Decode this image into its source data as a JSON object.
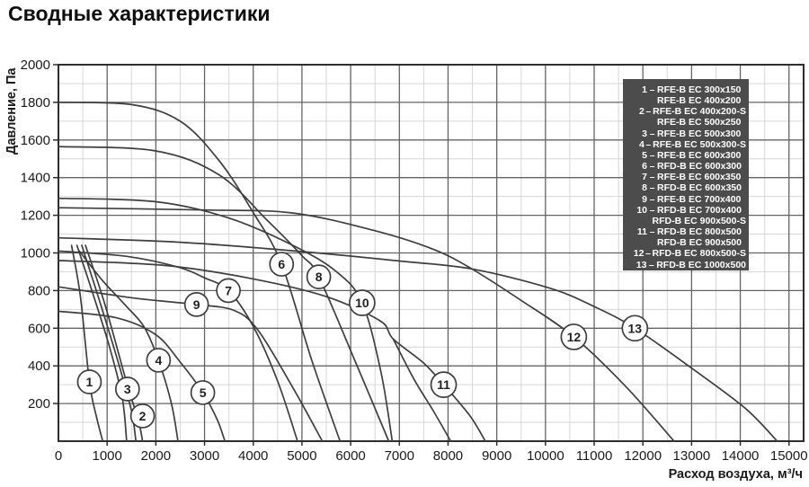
{
  "title": "Сводные характеристики",
  "colors": {
    "curve": "#3e3e3e",
    "grid_major": "#646464",
    "grid_minor": "#d6d6d6",
    "border": "#2d2d2d",
    "legend_bg": "#4c4c4c",
    "legend_text": "#ffffff",
    "text": "#1a1a1a",
    "circle_fill": "#ffffff"
  },
  "chart_data": {
    "type": "line",
    "title": "Сводные характеристики",
    "xlabel": "Расход воздуха, м³/ч",
    "ylabel": "Давление, Па",
    "xlim": [
      0,
      15300
    ],
    "ylim": [
      0,
      2000
    ],
    "x_tick_step": 1000,
    "x_minor_step": 500,
    "y_tick_step": 200,
    "y_minor_step": 100,
    "grid": true,
    "legend_position": "top-right",
    "x_tick_labels": [
      "0",
      "1000",
      "2000",
      "3000",
      "4000",
      "5000",
      "6000",
      "7000",
      "8000",
      "9000",
      "10000",
      "11000",
      "12000",
      "13000",
      "14000",
      "15000"
    ],
    "y_tick_labels": [
      "200",
      "400",
      "600",
      "800",
      "1000",
      "1200",
      "1400",
      "1600",
      "1800",
      "2000"
    ],
    "series": [
      {
        "n": "1",
        "models": [
          "RFE-B EC 300x150",
          "RFE-B EC 400x200"
        ],
        "points": [
          [
            270,
            1040
          ],
          [
            450,
            770
          ],
          [
            636,
            315
          ],
          [
            780,
            130
          ],
          [
            909,
            0
          ]
        ],
        "label_at": [
          636,
          315
        ]
      },
      {
        "n": "2",
        "models": [
          "RFE-B EC 400x200-S",
          "RFE-B EC 500x250"
        ],
        "points": [
          [
            480,
            1040
          ],
          [
            850,
            740
          ],
          [
            1250,
            400
          ],
          [
            1500,
            160
          ],
          [
            1590,
            0
          ]
        ],
        "label_at": [
          1727,
          134
        ]
      },
      {
        "n": "2-pair",
        "aux": true,
        "models": [],
        "points": [
          [
            555,
            1040
          ],
          [
            950,
            730
          ],
          [
            1380,
            330
          ],
          [
            1640,
            110
          ],
          [
            1727,
            0
          ]
        ],
        "label_at": null
      },
      {
        "n": "2-connector",
        "aux": true,
        "models": [],
        "points": [
          [
            1545,
            134
          ],
          [
            1700,
            134
          ]
        ],
        "label_at": null
      },
      {
        "n": "3",
        "models": [
          "RFE-B EC 500x300"
        ],
        "points": [
          [
            380,
            1040
          ],
          [
            700,
            790
          ],
          [
            1050,
            500
          ],
          [
            1310,
            230
          ],
          [
            1400,
            0
          ]
        ],
        "label_at": [
          1418,
          277
        ]
      },
      {
        "n": "4",
        "models": [
          "RFE-B EC 500x300-S"
        ],
        "points": [
          [
            430,
            1010
          ],
          [
            900,
            855
          ],
          [
            1400,
            715
          ],
          [
            1764,
            605
          ],
          [
            2055,
            430
          ],
          [
            2320,
            200
          ],
          [
            2455,
            0
          ]
        ],
        "label_at": [
          2055,
          430
        ]
      },
      {
        "n": "5",
        "models": [
          "RFE-B EC 600x300"
        ],
        "points": [
          [
            0,
            690
          ],
          [
            1200,
            655
          ],
          [
            2000,
            565
          ],
          [
            2500,
            420
          ],
          [
            2964,
            258
          ],
          [
            3260,
            115
          ],
          [
            3418,
            0
          ]
        ],
        "label_at": [
          2964,
          258
        ]
      },
      {
        "n": "6",
        "models": [
          "RFD-B EC 600x300"
        ],
        "points": [
          [
            0,
            1800
          ],
          [
            1500,
            1788
          ],
          [
            2500,
            1700
          ],
          [
            3300,
            1490
          ],
          [
            4000,
            1215
          ],
          [
            4582,
            940
          ],
          [
            5200,
            430
          ],
          [
            5782,
            0
          ]
        ],
        "label_at": [
          4582,
          940
        ]
      },
      {
        "n": "7",
        "models": [
          "RFE-B EC 600x350"
        ],
        "points": [
          [
            0,
            1010
          ],
          [
            1400,
            982
          ],
          [
            2455,
            925
          ],
          [
            3000,
            868
          ],
          [
            3490,
            800
          ],
          [
            4000,
            610
          ],
          [
            4500,
            320
          ],
          [
            4909,
            0
          ]
        ],
        "label_at": [
          3490,
          800
        ]
      },
      {
        "n": "8",
        "models": [
          "RFD-B EC 600x350"
        ],
        "points": [
          [
            0,
            1565
          ],
          [
            2000,
            1542
          ],
          [
            3300,
            1415
          ],
          [
            4300,
            1170
          ],
          [
            5000,
            985
          ],
          [
            5345,
            873
          ],
          [
            6100,
            420
          ],
          [
            6782,
            0
          ]
        ],
        "label_at": [
          5345,
          873
        ]
      },
      {
        "n": "9",
        "models": [
          "RFE-B EC 700x400"
        ],
        "points": [
          [
            0,
            820
          ],
          [
            1400,
            765
          ],
          [
            2090,
            745
          ],
          [
            2836,
            726
          ],
          [
            3600,
            695
          ],
          [
            4091,
            592
          ],
          [
            4800,
            290
          ],
          [
            5418,
            0
          ]
        ],
        "label_at": [
          2836,
          726
        ]
      },
      {
        "n": "10",
        "models": [
          "RFD-B EC 700x400",
          "RFD-B EC 900x500-S"
        ],
        "points": [
          [
            0,
            1290
          ],
          [
            2000,
            1272
          ],
          [
            3500,
            1185
          ],
          [
            4800,
            1042
          ],
          [
            5700,
            902
          ],
          [
            6236,
            735
          ],
          [
            6620,
            370
          ],
          [
            6855,
            0
          ]
        ],
        "label_at": [
          6236,
          735
        ]
      },
      {
        "n": "11",
        "models": [
          "RFD-B EC 800x500",
          "RFD-B EC 900x500"
        ],
        "points": [
          [
            0,
            960
          ],
          [
            2200,
            933
          ],
          [
            4000,
            862
          ],
          [
            5500,
            768
          ],
          [
            6600,
            640
          ],
          [
            6873,
            543
          ],
          [
            7500,
            415
          ],
          [
            7909,
            300
          ],
          [
            8450,
            135
          ],
          [
            8764,
            0
          ]
        ],
        "label_at": [
          7909,
          300
        ]
      },
      {
        "n": "11-branch",
        "aux": true,
        "models": [],
        "points": [
          [
            6873,
            543
          ],
          [
            7300,
            330
          ],
          [
            7700,
            160
          ],
          [
            8055,
            0
          ]
        ],
        "label_at": null
      },
      {
        "n": "12",
        "models": [
          "RFD-B EC 800x500-S"
        ],
        "points": [
          [
            0,
            1240
          ],
          [
            3000,
            1228
          ],
          [
            4818,
            1212
          ],
          [
            6500,
            1118
          ],
          [
            7690,
            1020
          ],
          [
            8490,
            915
          ],
          [
            9500,
            748
          ],
          [
            10582,
            554
          ],
          [
            11650,
            290
          ],
          [
            12640,
            0
          ]
        ],
        "label_at": [
          10582,
          554
        ]
      },
      {
        "n": "13",
        "models": [
          "RFD-B EC 1000x500"
        ],
        "points": [
          [
            0,
            1080
          ],
          [
            2500,
            1057
          ],
          [
            5000,
            1007
          ],
          [
            7000,
            957
          ],
          [
            8490,
            915
          ],
          [
            10090,
            813
          ],
          [
            11000,
            715
          ],
          [
            11836,
            600
          ],
          [
            13000,
            388
          ],
          [
            14100,
            175
          ],
          [
            14760,
            0
          ]
        ],
        "label_at": [
          11836,
          600
        ]
      }
    ],
    "legend_rows": [
      {
        "num": "1",
        "label": "RFE-B EC 300x150"
      },
      {
        "num": "",
        "label": "RFE-B EC 400x200"
      },
      {
        "num": "2",
        "label": "RFE-B EC 400x200-S"
      },
      {
        "num": "",
        "label": "RFE-B EC 500x250"
      },
      {
        "num": "3",
        "label": "RFE-B EC 500x300"
      },
      {
        "num": "4",
        "label": "RFE-B EC 500x300-S"
      },
      {
        "num": "5",
        "label": "RFE-B EC 600x300"
      },
      {
        "num": "6",
        "label": "RFD-B EC 600x300"
      },
      {
        "num": "7",
        "label": "RFE-B EC 600x350"
      },
      {
        "num": "8",
        "label": "RFD-B EC 600x350"
      },
      {
        "num": "9",
        "label": "RFE-B EC 700x400"
      },
      {
        "num": "10",
        "label": "RFD-B EC 700x400"
      },
      {
        "num": "",
        "label": "RFD-B EC 900x500-S"
      },
      {
        "num": "11",
        "label": "RFD-B EC 800x500"
      },
      {
        "num": "",
        "label": "RFD-B EC 900x500"
      },
      {
        "num": "12",
        "label": "RFD-B EC 800x500-S"
      },
      {
        "num": "13",
        "label": "RFD-B EC 1000x500"
      }
    ]
  }
}
